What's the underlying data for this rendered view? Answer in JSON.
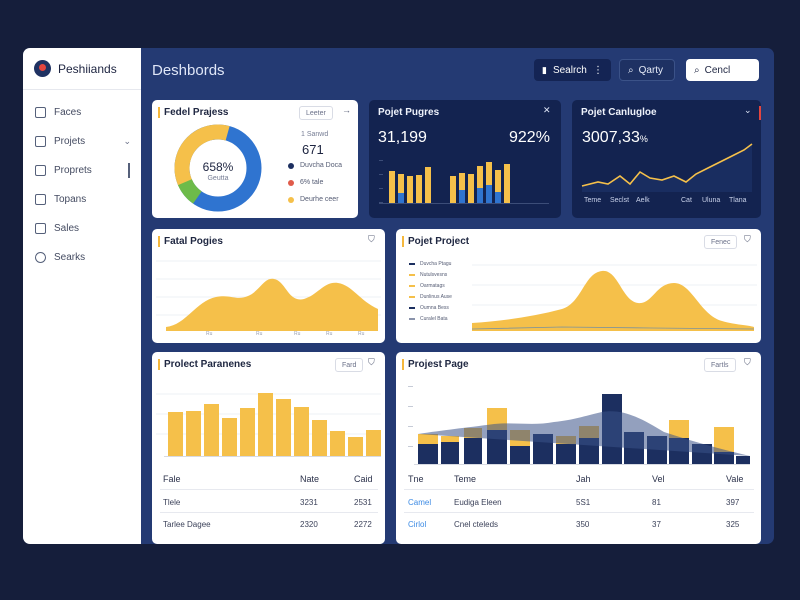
{
  "brand": {
    "name": "Peshiiands"
  },
  "sidebar": {
    "items": [
      {
        "label": "Faces",
        "icon": "file-icon"
      },
      {
        "label": "Projets",
        "icon": "bag-icon",
        "has_chevron": true
      },
      {
        "label": "Proprets",
        "icon": "calendar-icon",
        "active": true
      },
      {
        "label": "Topans",
        "icon": "calendar-icon"
      },
      {
        "label": "Sales",
        "icon": "cart-icon"
      },
      {
        "label": "Searks",
        "icon": "globe-icon"
      }
    ]
  },
  "header": {
    "title": "Deshbords",
    "search_button": "Sealrch",
    "query_button": "Qarty",
    "cencl_button": "Cencl"
  },
  "cards": {
    "fedel_projess": {
      "title": "Fedel Prajess",
      "pill": "Leeter",
      "center_value": "658%",
      "center_label": "Geutta",
      "stat_label": "1 Sanwd",
      "stat_value": "671",
      "legend": [
        {
          "label": "Duvcha Doca",
          "color": "#1c2f60"
        },
        {
          "label": "6% tale",
          "color": "#e05b4a"
        },
        {
          "label": "Deurhe ceer",
          "color": "#f5c04a"
        }
      ]
    },
    "poject_pugres": {
      "title": "Pojet Pugres",
      "value_left": "31,199",
      "value_right": "922%"
    },
    "poject_canlugloe": {
      "title": "Pojet Canlugloe",
      "value": "3007,33",
      "value_suffix": "%",
      "x_labels": [
        "Teme",
        "Seclst",
        "Aelk",
        "Cat",
        "Uluna",
        "Tlana"
      ]
    },
    "fatal_pogies": {
      "title": "Fatal Pogies",
      "x_labels": [
        "Ru",
        "Ru",
        "Ru",
        "Ru",
        "Ru"
      ]
    },
    "pojet_project": {
      "title": "Pojet Project",
      "pill": "Fenec",
      "legend": [
        {
          "label": "Duvcha Ptagu",
          "color": "#1c2f60"
        },
        {
          "label": "Nutulsvesns",
          "color": "#f5c04a"
        },
        {
          "label": "Oarmatags",
          "color": "#f5c04a"
        },
        {
          "label": "Dunlinus Ause",
          "color": "#f5c04a"
        },
        {
          "label": "Oumna Bess",
          "color": "#1c2f60"
        },
        {
          "label": "Curalel Bata",
          "color": "#8a93ab"
        }
      ]
    },
    "project_paranenes": {
      "title": "Prolect Paranenes",
      "pill": "Fard",
      "table": {
        "headers": [
          "Fale",
          "Nate",
          "Caid"
        ],
        "rows": [
          [
            "Tlele",
            "3231",
            "2531"
          ],
          [
            "Tarlee Dagee",
            "2320",
            "2272"
          ]
        ]
      }
    },
    "project_page": {
      "title": "Projest Page",
      "pill": "Fartls",
      "table": {
        "headers": [
          "Tne",
          "Teme",
          "Jah",
          "Vel",
          "Vale"
        ],
        "rows": [
          [
            "Camel",
            "Eudiga Eleen",
            "5S1",
            "81",
            "397"
          ],
          [
            "Cirlol",
            "Cnel cteleds",
            "350",
            "37",
            "325"
          ]
        ]
      }
    }
  },
  "colors": {
    "navy": "#1c2f60",
    "yellow": "#f5c04a",
    "blue": "#2f74d0",
    "green": "#6dbb4a"
  }
}
